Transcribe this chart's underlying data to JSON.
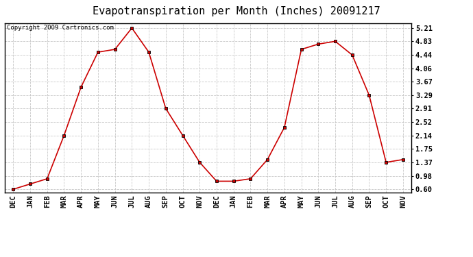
{
  "title": "Evapotranspiration per Month (Inches) 20091217",
  "copyright_text": "Copyright 2009 Cartronics.com",
  "months": [
    "DEC",
    "JAN",
    "FEB",
    "MAR",
    "APR",
    "MAY",
    "JUN",
    "JUL",
    "AUG",
    "SEP",
    "OCT",
    "NOV",
    "DEC",
    "JAN",
    "FEB",
    "MAR",
    "APR",
    "MAY",
    "JUN",
    "JUL",
    "AUG",
    "SEP",
    "OCT",
    "NOV"
  ],
  "values": [
    0.6,
    0.75,
    0.9,
    2.14,
    3.52,
    4.52,
    4.6,
    5.21,
    4.52,
    2.91,
    2.14,
    1.37,
    0.83,
    0.83,
    0.9,
    1.45,
    2.37,
    4.6,
    4.75,
    4.83,
    4.44,
    3.29,
    1.37,
    1.45
  ],
  "yticks": [
    0.6,
    0.98,
    1.37,
    1.75,
    2.14,
    2.52,
    2.91,
    3.29,
    3.67,
    4.06,
    4.44,
    4.83,
    5.21
  ],
  "ylim": [
    0.5,
    5.35
  ],
  "line_color": "#cc0000",
  "marker": "s",
  "marker_color": "#000000",
  "bg_color": "#ffffff",
  "plot_bg_color": "#ffffff",
  "grid_color": "#c8c8c8",
  "title_fontsize": 11,
  "copyright_fontsize": 6.5,
  "tick_fontsize": 7.5,
  "tick_fontweight": "bold"
}
